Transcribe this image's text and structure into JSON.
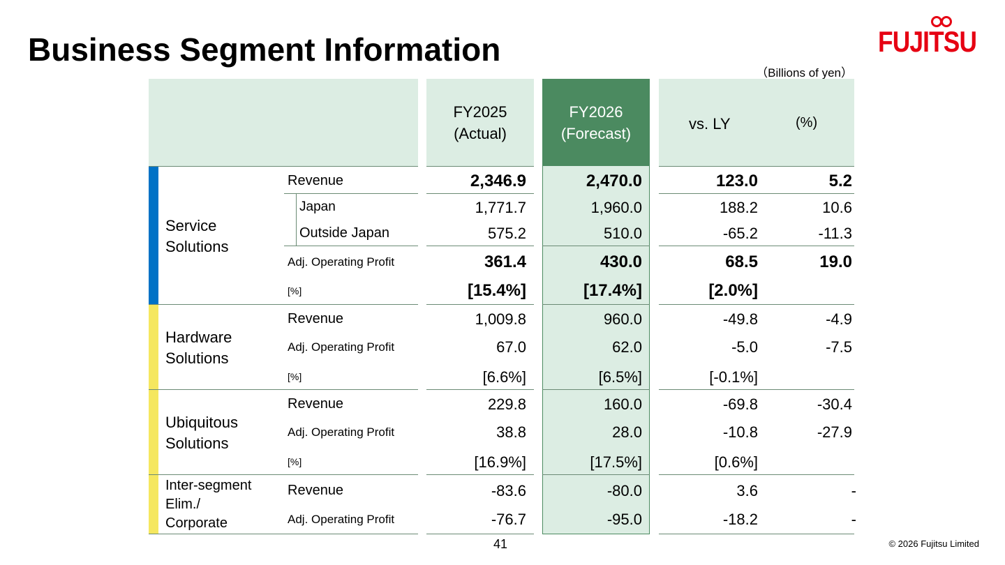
{
  "title": "Business Segment Information",
  "logo_text": "FUJITSU",
  "unit": "（Billions of yen）",
  "headers": {
    "actual": "FY2025\n(Actual)",
    "forecast": "FY2026\n(Forecast)",
    "vs_ly": "vs. LY",
    "pct": "(%)"
  },
  "segments": {
    "service": {
      "name": "Service\nSolutions",
      "color": "#0072c6",
      "revenue": {
        "label": "Revenue",
        "actual": "2,346.9",
        "forecast": "2,470.0",
        "diff": "123.0",
        "pct": "5.2"
      },
      "japan": {
        "label": "Japan",
        "actual": "1,771.7",
        "forecast": "1,960.0",
        "diff": "188.2",
        "pct": "10.6"
      },
      "outside": {
        "label": "Outside Japan",
        "actual": "575.2",
        "forecast": "510.0",
        "diff": "-65.2",
        "pct": "-11.3"
      },
      "profit": {
        "label": "Adj. Operating Profit",
        "actual": "361.4",
        "forecast": "430.0",
        "diff": "68.5",
        "pct": "19.0"
      },
      "margin": {
        "label": "[%]",
        "actual": "[15.4%]",
        "forecast": "[17.4%]",
        "diff": "[2.0%]"
      }
    },
    "hardware": {
      "name": "Hardware\nSolutions",
      "color": "#f5e75f",
      "revenue": {
        "label": "Revenue",
        "actual": "1,009.8",
        "forecast": "960.0",
        "diff": "-49.8",
        "pct": "-4.9"
      },
      "profit": {
        "label": "Adj. Operating Profit",
        "actual": "67.0",
        "forecast": "62.0",
        "diff": "-5.0",
        "pct": "-7.5"
      },
      "margin": {
        "label": "[%]",
        "actual": "[6.6%]",
        "forecast": "[6.5%]",
        "diff": "[-0.1%]"
      }
    },
    "ubiquitous": {
      "name": "Ubiquitous\nSolutions",
      "color": "#f5e75f",
      "revenue": {
        "label": "Revenue",
        "actual": "229.8",
        "forecast": "160.0",
        "diff": "-69.8",
        "pct": "-30.4"
      },
      "profit": {
        "label": "Adj. Operating Profit",
        "actual": "38.8",
        "forecast": "28.0",
        "diff": "-10.8",
        "pct": "-27.9"
      },
      "margin": {
        "label": "[%]",
        "actual": "[16.9%]",
        "forecast": "[17.5%]",
        "diff": "[0.6%]"
      }
    },
    "intersegment": {
      "name": "Inter-segment\nElim./\nCorporate",
      "color": "#f5e75f",
      "revenue": {
        "label": "Revenue",
        "actual": "-83.6",
        "forecast": "-80.0",
        "diff": "3.6",
        "pct": "-"
      },
      "profit": {
        "label": "Adj. Operating Profit",
        "actual": "-76.7",
        "forecast": "-95.0",
        "diff": "-18.2",
        "pct": "-"
      }
    }
  },
  "page_number": "41",
  "copyright": "© 2026 Fujitsu Limited"
}
